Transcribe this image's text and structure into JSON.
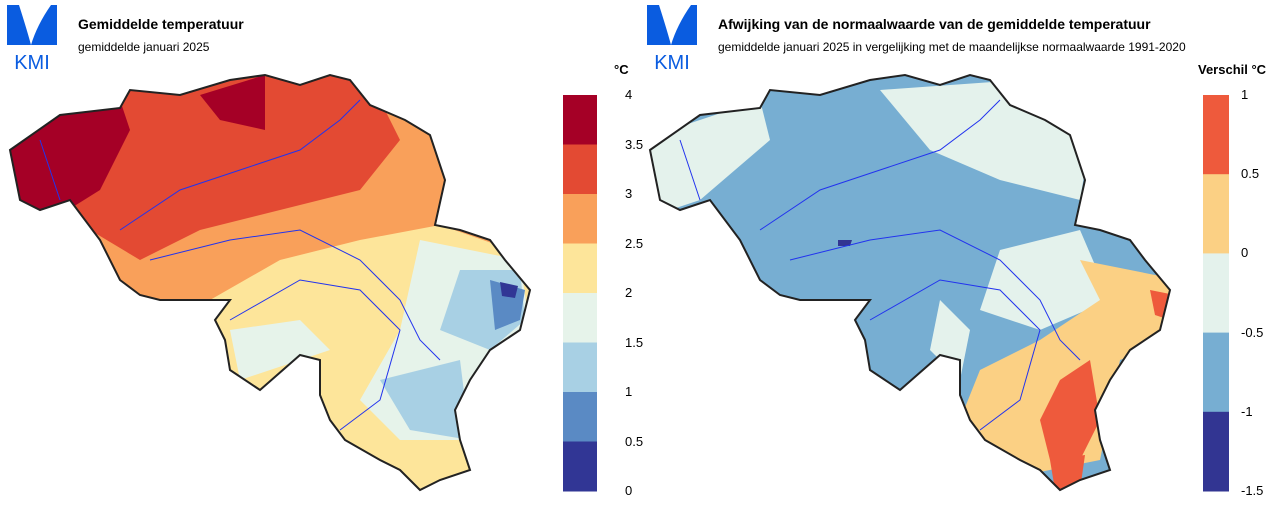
{
  "left": {
    "logo": "KMI",
    "title": "Gemiddelde temperatuur",
    "subtitle": "gemiddelde januari 2025",
    "unit": "°C",
    "legend": {
      "ticks": [
        "4",
        "3.5",
        "3",
        "2.5",
        "2",
        "1.5",
        "1",
        "0.5",
        "0"
      ],
      "colors": [
        "#a50026",
        "#e34a33",
        "#f9a05a",
        "#fde59a",
        "#e6f3ea",
        "#a8d0e4",
        "#5a8ac4",
        "#313695"
      ]
    }
  },
  "right": {
    "logo": "KMI",
    "title": "Afwijking van de normaalwaarde van de gemiddelde temperatuur",
    "subtitle": "gemiddelde januari 2025 in vergelijking met de maandelijkse normaalwaarde 1991-2020",
    "unit": "Verschil °C",
    "legend": {
      "ticks": [
        "1",
        "0.5",
        "0",
        "-0.5",
        "-1",
        "-1.5"
      ],
      "colors": [
        "#ee5a3c",
        "#fbd084",
        "#e4f2ec",
        "#77aed2",
        "#323592"
      ]
    }
  }
}
